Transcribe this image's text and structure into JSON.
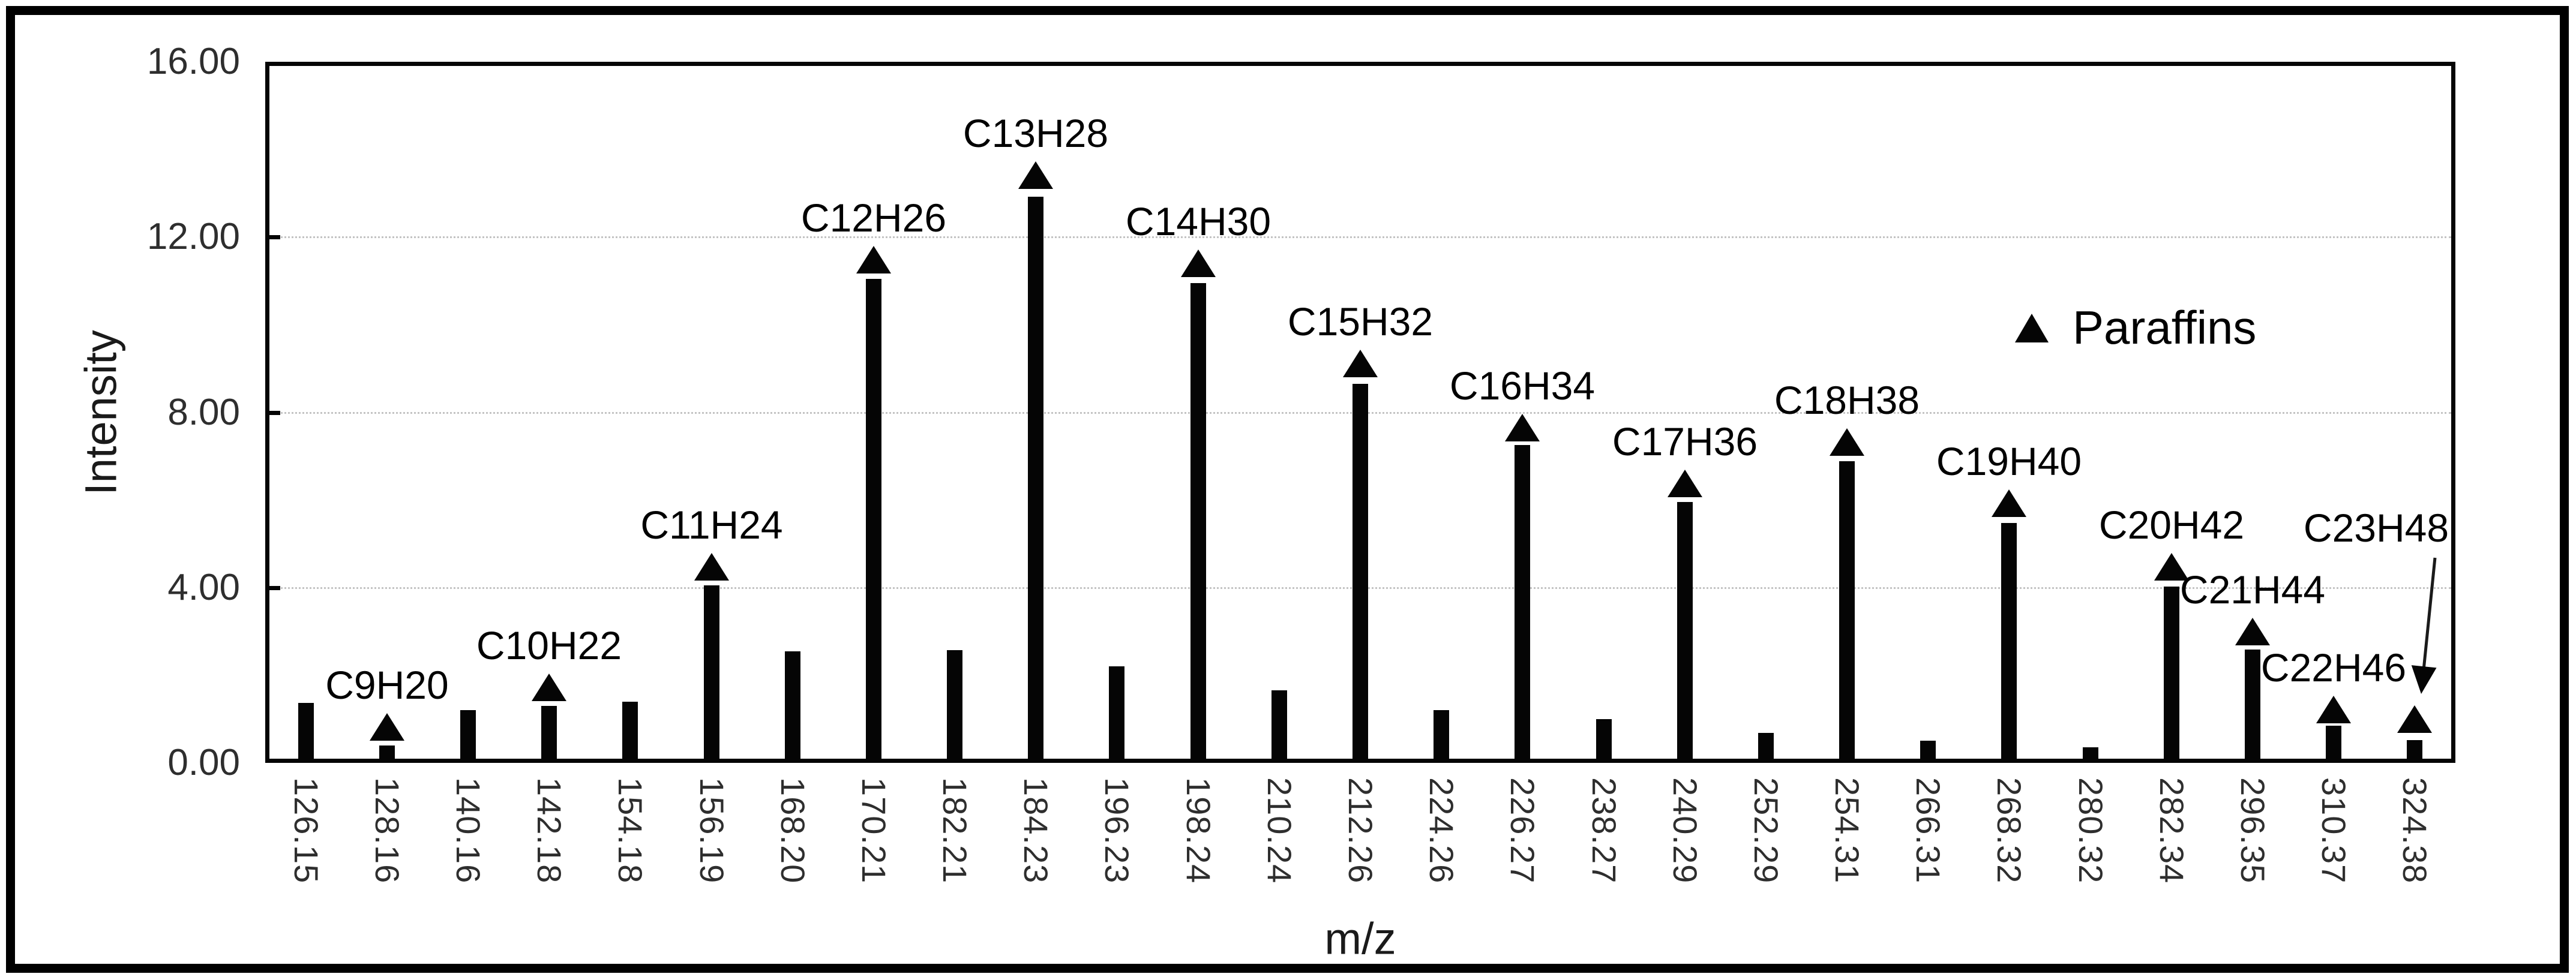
{
  "chart_data": {
    "type": "bar",
    "title": "",
    "xlabel": "m/z",
    "ylabel": "Intensity",
    "ylim": [
      0,
      16
    ],
    "ytick_labels": [
      "16.00",
      "12.00",
      "8.00",
      "4.00",
      "0.00"
    ],
    "grid": "horizontal-dotted",
    "legend": {
      "label": "Paraffins",
      "marker": "filled-triangle-icon",
      "position": "upper-right-inside"
    },
    "categories": [
      "126.15",
      "128.16",
      "140.16",
      "142.18",
      "154.18",
      "156.19",
      "168.20",
      "170.21",
      "182.21",
      "184.23",
      "196.23",
      "198.24",
      "210.24",
      "212.26",
      "224.26",
      "226.27",
      "238.27",
      "240.29",
      "252.29",
      "254.31",
      "266.31",
      "268.32",
      "280.32",
      "282.34",
      "296.35",
      "310.37",
      "324.38"
    ],
    "series": [
      {
        "name": "intensity-bars",
        "type": "bar",
        "color": "#050505",
        "values": [
          1.37,
          0.4,
          1.2,
          1.3,
          1.4,
          4.05,
          2.55,
          11.05,
          2.57,
          12.92,
          2.2,
          10.95,
          1.66,
          8.65,
          1.2,
          7.25,
          1.0,
          5.95,
          0.68,
          6.88,
          0.5,
          5.48,
          0.36,
          4.03,
          2.58,
          0.85,
          0.52
        ]
      },
      {
        "name": "Paraffins",
        "type": "scatter",
        "marker": "filled-triangle-icon",
        "color": "#050505",
        "values": [
          null,
          0.82,
          null,
          1.72,
          null,
          4.48,
          null,
          11.48,
          null,
          13.42,
          null,
          11.4,
          null,
          9.12,
          null,
          7.65,
          null,
          6.38,
          null,
          7.32,
          null,
          5.92,
          null,
          4.48,
          3.0,
          1.22,
          1.0
        ]
      }
    ],
    "point_labels": [
      {
        "category": "128.16",
        "text": "C9H20"
      },
      {
        "category": "142.18",
        "text": "C10H22"
      },
      {
        "category": "156.19",
        "text": "C11H24"
      },
      {
        "category": "170.21",
        "text": "C12H26"
      },
      {
        "category": "184.23",
        "text": "C13H28"
      },
      {
        "category": "198.24",
        "text": "C14H30"
      },
      {
        "category": "212.26",
        "text": "C15H32"
      },
      {
        "category": "226.27",
        "text": "C16H34"
      },
      {
        "category": "240.29",
        "text": "C17H36"
      },
      {
        "category": "254.31",
        "text": "C18H38"
      },
      {
        "category": "268.32",
        "text": "C19H40"
      },
      {
        "category": "282.34",
        "text": "C20H42"
      },
      {
        "category": "296.35",
        "text": "C21H44"
      },
      {
        "category": "310.37",
        "text": "C22H46"
      }
    ],
    "annotation": {
      "text": "C23H48",
      "target_category": "324.38",
      "style": "arrow-callout"
    }
  },
  "colors": {
    "bar": "#050505",
    "text": "#000000",
    "tick_text": "#2e2e2e",
    "gridline": "#c3c3c3",
    "background": "#ffffff",
    "frame": "#000000"
  }
}
